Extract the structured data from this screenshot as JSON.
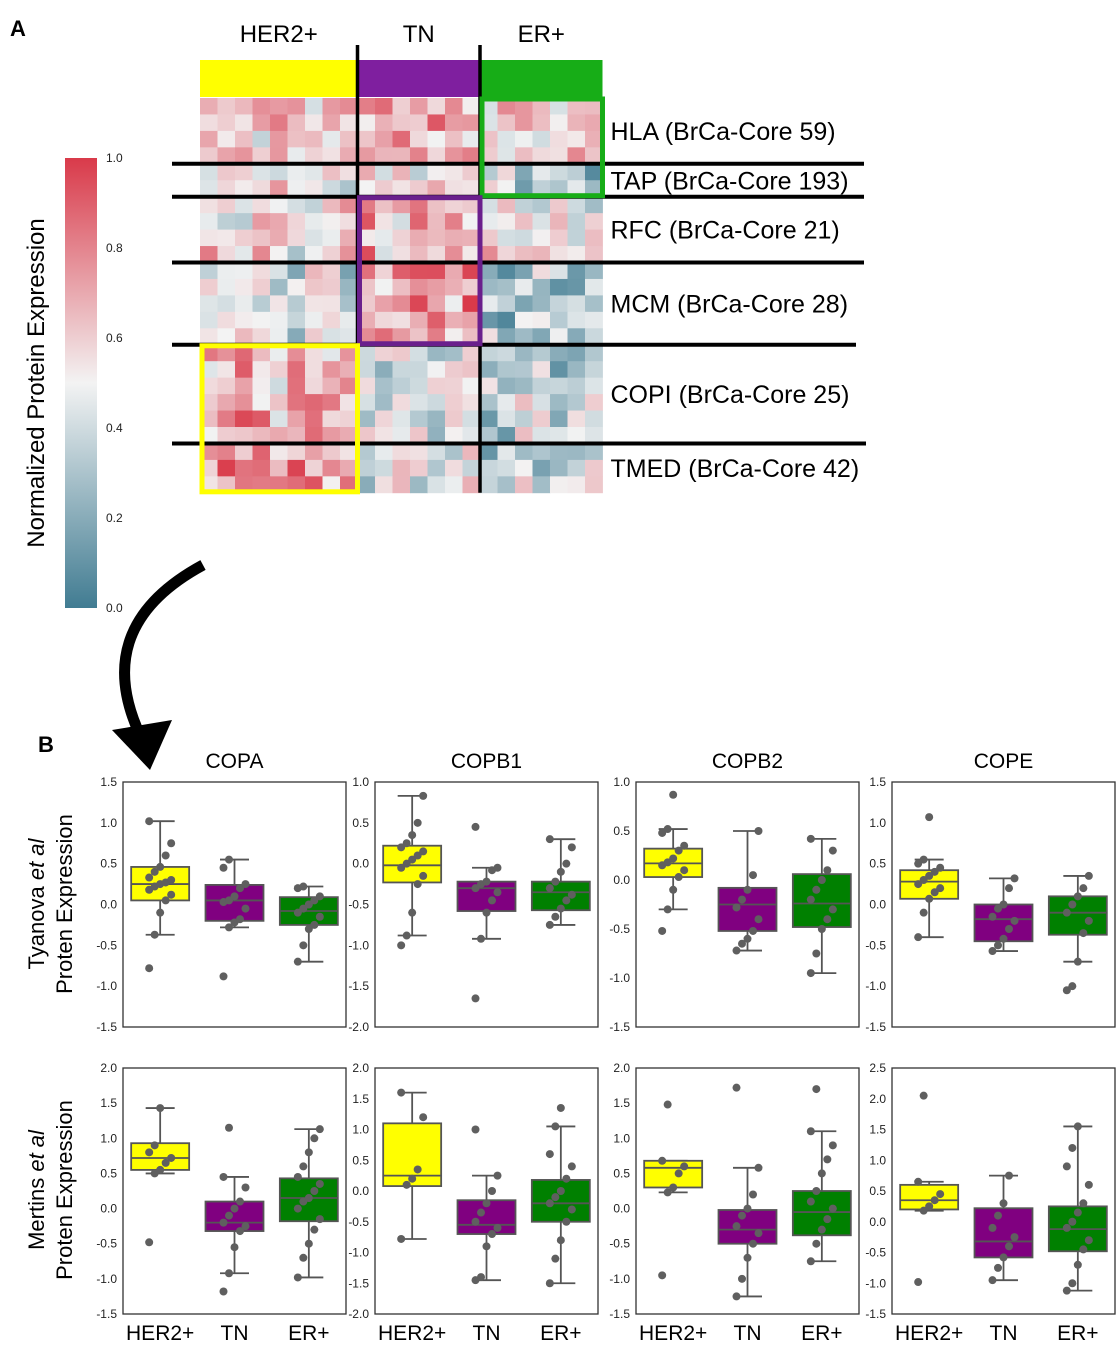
{
  "panel_a": {
    "label": "A",
    "groups": [
      {
        "label": "HER2+",
        "color": "#ffff00",
        "cols": 9
      },
      {
        "label": "TN",
        "color": "#7f1f9f",
        "cols": 7
      },
      {
        "label": "ER+",
        "color": "#17ad17",
        "cols": 7
      }
    ],
    "modules": [
      {
        "label": "HLA (BrCa-Core 59)",
        "rows": 4
      },
      {
        "label": "TAP (BrCa-Core 193)",
        "rows": 2
      },
      {
        "label": "RFC (BrCa-Core 21)",
        "rows": 4
      },
      {
        "label": "MCM (BrCa-Core 28)",
        "rows": 5
      },
      {
        "label": "COPI (BrCa-Core 25)",
        "rows": 6
      },
      {
        "label": "TMED (BrCa-Core 42)",
        "rows": 3
      }
    ],
    "colorbar": {
      "label": "Normalized Protein Expression",
      "ticks": [
        "1.0",
        "0.8",
        "0.6",
        "0.4",
        "0.2",
        "0.0"
      ],
      "low_color": "#417c92",
      "mid_color": "#f3f3f3",
      "high_color": "#d93a4a"
    },
    "module_group_means": [
      [
        0.62,
        0.68,
        0.58
      ],
      [
        0.45,
        0.55,
        0.36
      ],
      [
        0.56,
        0.66,
        0.5
      ],
      [
        0.43,
        0.76,
        0.3
      ],
      [
        0.68,
        0.48,
        0.38
      ],
      [
        0.74,
        0.46,
        0.4
      ]
    ],
    "highlight_boxes": [
      {
        "group": "ER+",
        "modules": [
          "HLA (BrCa-Core 59)",
          "TAP (BrCa-Core 193)"
        ],
        "color": "#17ad17"
      },
      {
        "group": "TN",
        "modules": [
          "RFC (BrCa-Core 21)",
          "MCM (BrCa-Core 28)"
        ],
        "color": "#6a1f8c"
      },
      {
        "group": "HER2+",
        "modules": [
          "COPI (BrCa-Core 25)",
          "TMED (BrCa-Core 42)"
        ],
        "color": "#ffff00"
      }
    ]
  },
  "panel_b": {
    "label": "B",
    "row_labels": [
      {
        "prefix": "Tyanova ",
        "italic": "et al",
        "line2": "Proten Expression"
      },
      {
        "prefix": "Mertins ",
        "italic": "et al",
        "line2": "Proten Expression"
      }
    ],
    "xticks": [
      "HER2+",
      "TN",
      "ER+"
    ]
  },
  "chart_data": [
    {
      "type": "box",
      "title": "COPA",
      "ylim": [
        -1.5,
        1.5
      ],
      "yticks": [
        "1.5",
        "1.0",
        "0.5",
        "0.0",
        "-0.5",
        "-1.0",
        "-1.5"
      ],
      "categories": [
        "HER2+",
        "TN",
        "ER+"
      ],
      "colors": [
        "#ffff00",
        "#800080",
        "#008000"
      ],
      "boxes": [
        {
          "whislo": -0.37,
          "q1": 0.05,
          "median": 0.25,
          "q3": 0.46,
          "whishi": 1.02,
          "points": [
            -0.78,
            -0.37,
            -0.1,
            0.05,
            0.12,
            0.18,
            0.22,
            0.25,
            0.27,
            0.3,
            0.33,
            0.4,
            0.46,
            0.6,
            0.75,
            1.02
          ]
        },
        {
          "whislo": -0.28,
          "q1": -0.2,
          "median": 0.05,
          "q3": 0.24,
          "whishi": 0.55,
          "points": [
            -0.88,
            -0.28,
            -0.22,
            -0.18,
            -0.05,
            0.03,
            0.05,
            0.1,
            0.2,
            0.25,
            0.45,
            0.55
          ]
        },
        {
          "whislo": -0.7,
          "q1": -0.25,
          "median": -0.08,
          "q3": 0.09,
          "whishi": 0.22,
          "points": [
            -0.7,
            -0.5,
            -0.3,
            -0.25,
            -0.15,
            -0.1,
            -0.05,
            0.0,
            0.05,
            0.1,
            0.2,
            0.22
          ]
        }
      ]
    },
    {
      "type": "box",
      "title": "COPB1",
      "ylim": [
        -2.0,
        1.0
      ],
      "yticks": [
        "1.0",
        "0.5",
        "0.0",
        "-0.5",
        "-1.0",
        "-1.5",
        "-2.0"
      ],
      "categories": [
        "HER2+",
        "TN",
        "ER+"
      ],
      "colors": [
        "#ffff00",
        "#800080",
        "#008000"
      ],
      "boxes": [
        {
          "whislo": -0.88,
          "q1": -0.23,
          "median": -0.02,
          "q3": 0.22,
          "whishi": 0.83,
          "points": [
            -1.0,
            -0.88,
            -0.6,
            -0.25,
            -0.15,
            -0.05,
            0.0,
            0.05,
            0.1,
            0.15,
            0.2,
            0.25,
            0.35,
            0.5,
            0.83
          ]
        },
        {
          "whislo": -0.92,
          "q1": -0.58,
          "median": -0.3,
          "q3": -0.22,
          "whishi": -0.05,
          "points": [
            -1.65,
            -0.92,
            -0.6,
            -0.45,
            -0.35,
            -0.3,
            -0.25,
            -0.22,
            -0.08,
            -0.05,
            0.45
          ]
        },
        {
          "whislo": -0.75,
          "q1": -0.57,
          "median": -0.35,
          "q3": -0.22,
          "whishi": 0.3,
          "points": [
            -0.75,
            -0.65,
            -0.55,
            -0.45,
            -0.38,
            -0.3,
            -0.22,
            -0.1,
            0.0,
            0.2,
            0.3
          ]
        }
      ]
    },
    {
      "type": "box",
      "title": "COPB2",
      "ylim": [
        -1.5,
        1.0
      ],
      "yticks": [
        "1.0",
        "0.5",
        "0.0",
        "-0.5",
        "-1.0",
        "-1.5"
      ],
      "categories": [
        "HER2+",
        "TN",
        "ER+"
      ],
      "colors": [
        "#ffff00",
        "#800080",
        "#008000"
      ],
      "boxes": [
        {
          "whislo": -0.3,
          "q1": 0.03,
          "median": 0.17,
          "q3": 0.32,
          "whishi": 0.52,
          "points": [
            -0.52,
            -0.3,
            -0.1,
            0.03,
            0.1,
            0.15,
            0.18,
            0.22,
            0.3,
            0.35,
            0.48,
            0.52,
            0.87
          ]
        },
        {
          "whislo": -0.72,
          "q1": -0.52,
          "median": -0.25,
          "q3": -0.08,
          "whishi": 0.5,
          "points": [
            -0.72,
            -0.65,
            -0.6,
            -0.52,
            -0.4,
            -0.28,
            -0.2,
            -0.1,
            0.05,
            0.5
          ]
        },
        {
          "whislo": -0.95,
          "q1": -0.48,
          "median": -0.24,
          "q3": 0.06,
          "whishi": 0.42,
          "points": [
            -0.95,
            -0.75,
            -0.5,
            -0.4,
            -0.3,
            -0.2,
            -0.1,
            0.0,
            0.1,
            0.3,
            0.42
          ]
        }
      ]
    },
    {
      "type": "box",
      "title": "COPE",
      "ylim": [
        -1.5,
        1.5
      ],
      "yticks": [
        "1.5",
        "1.0",
        "0.5",
        "0.0",
        "-0.5",
        "-1.0",
        "-1.5"
      ],
      "categories": [
        "HER2+",
        "TN",
        "ER+"
      ],
      "colors": [
        "#ffff00",
        "#800080",
        "#008000"
      ],
      "boxes": [
        {
          "whislo": -0.4,
          "q1": 0.07,
          "median": 0.28,
          "q3": 0.42,
          "whishi": 0.55,
          "points": [
            -0.4,
            -0.1,
            0.07,
            0.15,
            0.2,
            0.25,
            0.3,
            0.35,
            0.4,
            0.45,
            0.5,
            0.55,
            1.07
          ]
        },
        {
          "whislo": -0.57,
          "q1": -0.45,
          "median": -0.18,
          "q3": 0.0,
          "whishi": 0.32,
          "points": [
            -0.57,
            -0.5,
            -0.42,
            -0.3,
            -0.2,
            -0.15,
            -0.05,
            0.0,
            0.2,
            0.32
          ]
        },
        {
          "whislo": -0.7,
          "q1": -0.37,
          "median": -0.1,
          "q3": 0.1,
          "whishi": 0.35,
          "points": [
            -1.05,
            -1.0,
            -0.7,
            -0.35,
            -0.2,
            -0.1,
            0.0,
            0.1,
            0.2,
            0.35
          ]
        }
      ]
    },
    {
      "type": "box",
      "title": "",
      "ylim": [
        -1.5,
        2.0
      ],
      "yticks": [
        "2.0",
        "1.5",
        "1.0",
        "0.5",
        "0.0",
        "-0.5",
        "-1.0",
        "-1.5"
      ],
      "categories": [
        "HER2+",
        "TN",
        "ER+"
      ],
      "colors": [
        "#ffff00",
        "#800080",
        "#008000"
      ],
      "boxes": [
        {
          "whislo": 0.5,
          "q1": 0.55,
          "median": 0.72,
          "q3": 0.93,
          "whishi": 1.43,
          "points": [
            -0.48,
            0.5,
            0.55,
            0.65,
            0.72,
            0.8,
            0.9,
            1.43
          ]
        },
        {
          "whislo": -0.92,
          "q1": -0.32,
          "median": -0.2,
          "q3": 0.1,
          "whishi": 0.45,
          "points": [
            -1.18,
            -0.92,
            -0.55,
            -0.32,
            -0.25,
            -0.2,
            -0.1,
            0.0,
            0.1,
            0.3,
            0.45,
            1.15
          ]
        },
        {
          "whislo": -0.98,
          "q1": -0.18,
          "median": 0.15,
          "q3": 0.43,
          "whishi": 1.13,
          "points": [
            -0.98,
            -0.7,
            -0.5,
            -0.3,
            -0.15,
            0.0,
            0.1,
            0.15,
            0.25,
            0.35,
            0.45,
            0.6,
            0.8,
            1.0,
            1.13
          ]
        }
      ]
    },
    {
      "type": "box",
      "title": "",
      "ylim": [
        -2.0,
        2.0
      ],
      "yticks": [
        "2.0",
        "1.5",
        "1.0",
        "0.5",
        "0.0",
        "-0.5",
        "-1.0",
        "-1.5",
        "-2.0"
      ],
      "categories": [
        "HER2+",
        "TN",
        "ER+"
      ],
      "colors": [
        "#ffff00",
        "#800080",
        "#008000"
      ],
      "boxes": [
        {
          "whislo": -0.78,
          "q1": 0.08,
          "median": 0.25,
          "q3": 1.1,
          "whishi": 1.6,
          "points": [
            -0.78,
            0.1,
            0.2,
            0.35,
            1.2,
            1.6
          ]
        },
        {
          "whislo": -1.45,
          "q1": -0.7,
          "median": -0.55,
          "q3": -0.15,
          "whishi": 0.25,
          "points": [
            -1.45,
            -1.4,
            -0.9,
            -0.7,
            -0.6,
            -0.5,
            -0.35,
            -0.2,
            0.0,
            0.25,
            1.0
          ]
        },
        {
          "whislo": -1.5,
          "q1": -0.5,
          "median": -0.2,
          "q3": 0.18,
          "whishi": 1.05,
          "points": [
            -1.5,
            -1.1,
            -0.8,
            -0.5,
            -0.3,
            -0.2,
            -0.1,
            0.0,
            0.2,
            0.4,
            0.6,
            1.05,
            1.35
          ]
        }
      ]
    },
    {
      "type": "box",
      "title": "",
      "ylim": [
        -1.5,
        2.0
      ],
      "yticks": [
        "2.0",
        "1.5",
        "1.0",
        "0.5",
        "0.0",
        "-0.5",
        "-1.0",
        "-1.5"
      ],
      "categories": [
        "HER2+",
        "TN",
        "ER+"
      ],
      "colors": [
        "#ffff00",
        "#800080",
        "#008000"
      ],
      "boxes": [
        {
          "whislo": 0.23,
          "q1": 0.3,
          "median": 0.58,
          "q3": 0.68,
          "whishi": 0.68,
          "points": [
            -0.95,
            0.23,
            0.3,
            0.5,
            0.6,
            0.68,
            1.48
          ]
        },
        {
          "whislo": -1.25,
          "q1": -0.5,
          "median": -0.3,
          "q3": -0.02,
          "whishi": 0.58,
          "points": [
            -1.25,
            -1.0,
            -0.7,
            -0.5,
            -0.35,
            -0.25,
            -0.1,
            0.0,
            0.2,
            0.58,
            1.72
          ]
        },
        {
          "whislo": -0.75,
          "q1": -0.38,
          "median": -0.05,
          "q3": 0.25,
          "whishi": 1.1,
          "points": [
            -0.75,
            -0.5,
            -0.3,
            -0.15,
            0.0,
            0.1,
            0.25,
            0.5,
            0.7,
            0.9,
            1.1,
            1.7
          ]
        }
      ]
    },
    {
      "type": "box",
      "title": "",
      "ylim": [
        -1.5,
        2.5
      ],
      "yticks": [
        "2.5",
        "2.0",
        "1.5",
        "1.0",
        "0.5",
        "0.0",
        "-0.5",
        "-1.0",
        "-1.5"
      ],
      "categories": [
        "HER2+",
        "TN",
        "ER+"
      ],
      "colors": [
        "#ffff00",
        "#800080",
        "#008000"
      ],
      "boxes": [
        {
          "whislo": 0.18,
          "q1": 0.2,
          "median": 0.35,
          "q3": 0.6,
          "whishi": 0.65,
          "points": [
            -0.98,
            0.18,
            0.25,
            0.35,
            0.45,
            0.65,
            2.05
          ]
        },
        {
          "whislo": -0.95,
          "q1": -0.58,
          "median": -0.32,
          "q3": 0.22,
          "whishi": 0.75,
          "points": [
            -0.95,
            -0.75,
            -0.58,
            -0.4,
            -0.25,
            -0.1,
            0.1,
            0.3,
            0.75
          ]
        },
        {
          "whislo": -1.12,
          "q1": -0.48,
          "median": -0.12,
          "q3": 0.25,
          "whishi": 1.55,
          "points": [
            -1.12,
            -1.0,
            -0.7,
            -0.45,
            -0.3,
            -0.1,
            0.0,
            0.15,
            0.3,
            0.6,
            0.9,
            1.2,
            1.55
          ]
        }
      ]
    }
  ]
}
